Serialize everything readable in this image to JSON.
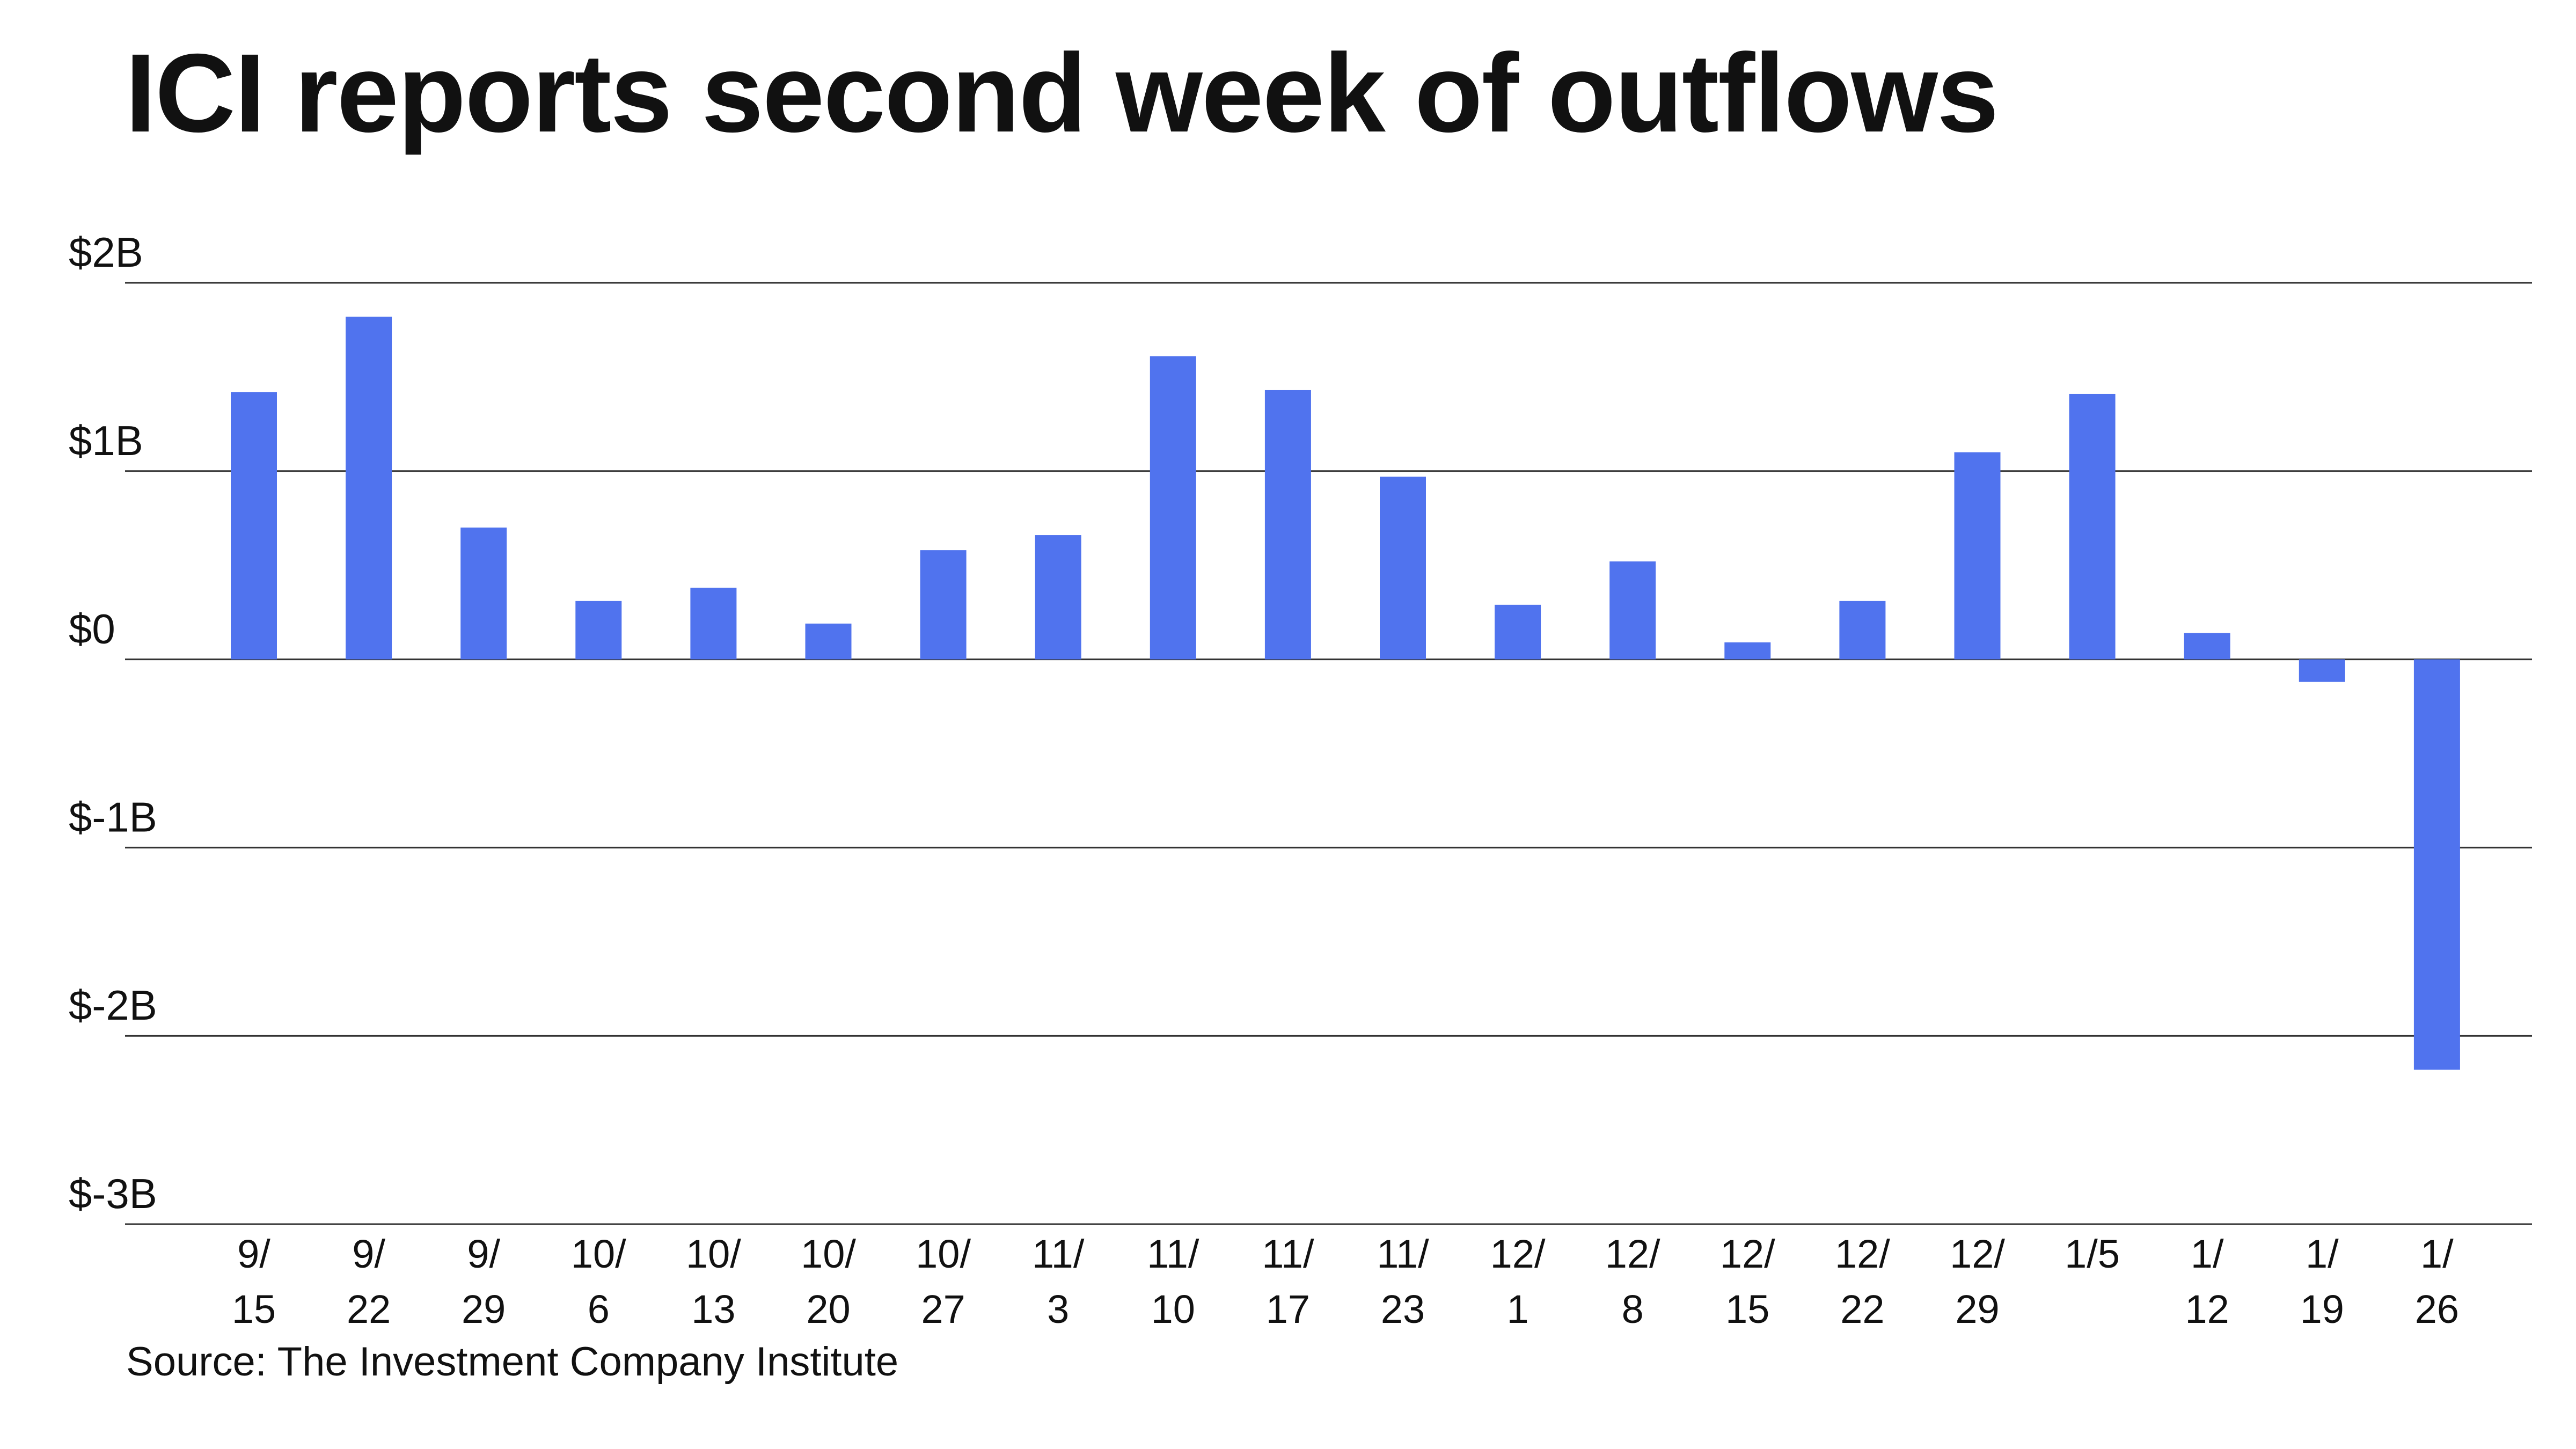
{
  "chart_data": {
    "type": "bar",
    "title": "ICI reports second week of outflows",
    "xlabel": "",
    "ylabel": "",
    "source": "Source: The Investment Company Institute",
    "categories": [
      "9/15",
      "9/22",
      "9/29",
      "10/6",
      "10/13",
      "10/20",
      "10/27",
      "11/3",
      "11/10",
      "11/17",
      "11/23",
      "12/1",
      "12/8",
      "12/15",
      "12/22",
      "12/29",
      "1/5",
      "1/12",
      "1/19",
      "1/26"
    ],
    "tick_labels": [
      [
        "9/",
        "15"
      ],
      [
        "9/",
        "22"
      ],
      [
        "9/",
        "29"
      ],
      [
        "10/",
        "6"
      ],
      [
        "10/",
        "13"
      ],
      [
        "10/",
        "20"
      ],
      [
        "10/",
        "27"
      ],
      [
        "11/",
        "3"
      ],
      [
        "11/",
        "10"
      ],
      [
        "11/",
        "17"
      ],
      [
        "11/",
        "23"
      ],
      [
        "12/",
        "1"
      ],
      [
        "12/",
        "8"
      ],
      [
        "12/",
        "15"
      ],
      [
        "12/",
        "22"
      ],
      [
        "12/",
        "29"
      ],
      [
        "1/5",
        ""
      ],
      [
        "1/",
        "12"
      ],
      [
        "1/",
        "19"
      ],
      [
        "1/",
        "26"
      ]
    ],
    "values": [
      1.42,
      1.82,
      0.7,
      0.31,
      0.38,
      0.19,
      0.58,
      0.66,
      1.61,
      1.43,
      0.97,
      0.29,
      0.52,
      0.09,
      0.31,
      1.1,
      1.41,
      0.14,
      -0.12,
      -2.18
    ],
    "unit": "billions of dollars",
    "ylim": [
      -3,
      2
    ],
    "yticks": [
      2,
      1,
      0,
      -1,
      -2,
      -3
    ],
    "ytick_labels": [
      "$2B",
      "$1B",
      "$0",
      "$-1B",
      "$-2B",
      "$-3B"
    ],
    "grid": true,
    "legend": "none",
    "bar_color": "#5073EE",
    "grid_color": "#333333"
  }
}
